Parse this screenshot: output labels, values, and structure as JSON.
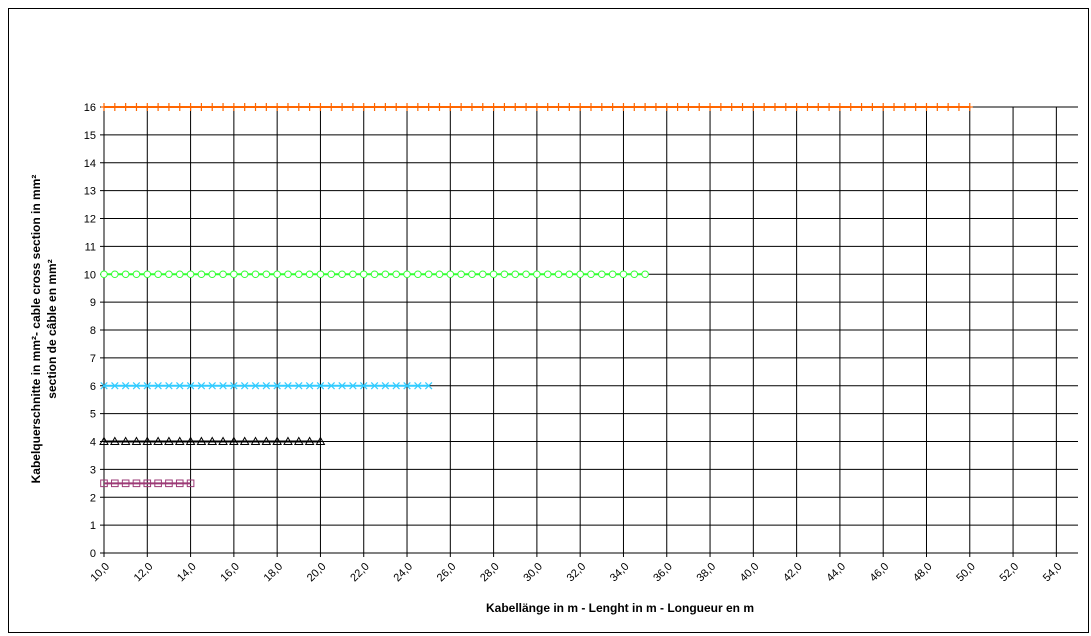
{
  "chart_data": {
    "type": "line",
    "title": "",
    "xlabel": "Kabellänge in m - Lenght in m - Longueur en m",
    "ylabel_lines": [
      "Kabelquerschnitte in mm²- cable cross section in mm²",
      "section de câble en mm²"
    ],
    "x_ticks": [
      "10,0",
      "12,0",
      "14,0",
      "16,0",
      "18,0",
      "20,0",
      "22,0",
      "24,0",
      "26,0",
      "28,0",
      "30,0",
      "32,0",
      "34,0",
      "36,0",
      "38,0",
      "40,0",
      "42,0",
      "44,0",
      "46,0",
      "48,0",
      "50,0",
      "52,0",
      "54,0"
    ],
    "xlim": [
      10,
      55
    ],
    "ylim": [
      0,
      16
    ],
    "y_ticks": [
      0,
      1,
      2,
      3,
      4,
      5,
      6,
      7,
      8,
      9,
      10,
      11,
      12,
      13,
      14,
      15,
      16
    ],
    "grid": true,
    "legend": "none",
    "series": [
      {
        "x_start": 10,
        "x_end": 14,
        "x_step": 0.5,
        "y": 2.5,
        "marker": "square",
        "color": "#9c3a76"
      },
      {
        "x_start": 10,
        "x_end": 20,
        "x_step": 0.5,
        "y": 4,
        "marker": "triangle",
        "color": "#000000"
      },
      {
        "x_start": 10,
        "x_end": 25,
        "x_step": 0.5,
        "y": 6,
        "marker": "x",
        "color": "#33ccff"
      },
      {
        "x_start": 10,
        "x_end": 35,
        "x_step": 0.5,
        "y": 10,
        "marker": "circle",
        "color": "#33ff33"
      },
      {
        "x_start": 10,
        "x_end": 50,
        "x_step": 0.5,
        "y": 16,
        "marker": "plus",
        "color": "#ff6600"
      }
    ]
  }
}
